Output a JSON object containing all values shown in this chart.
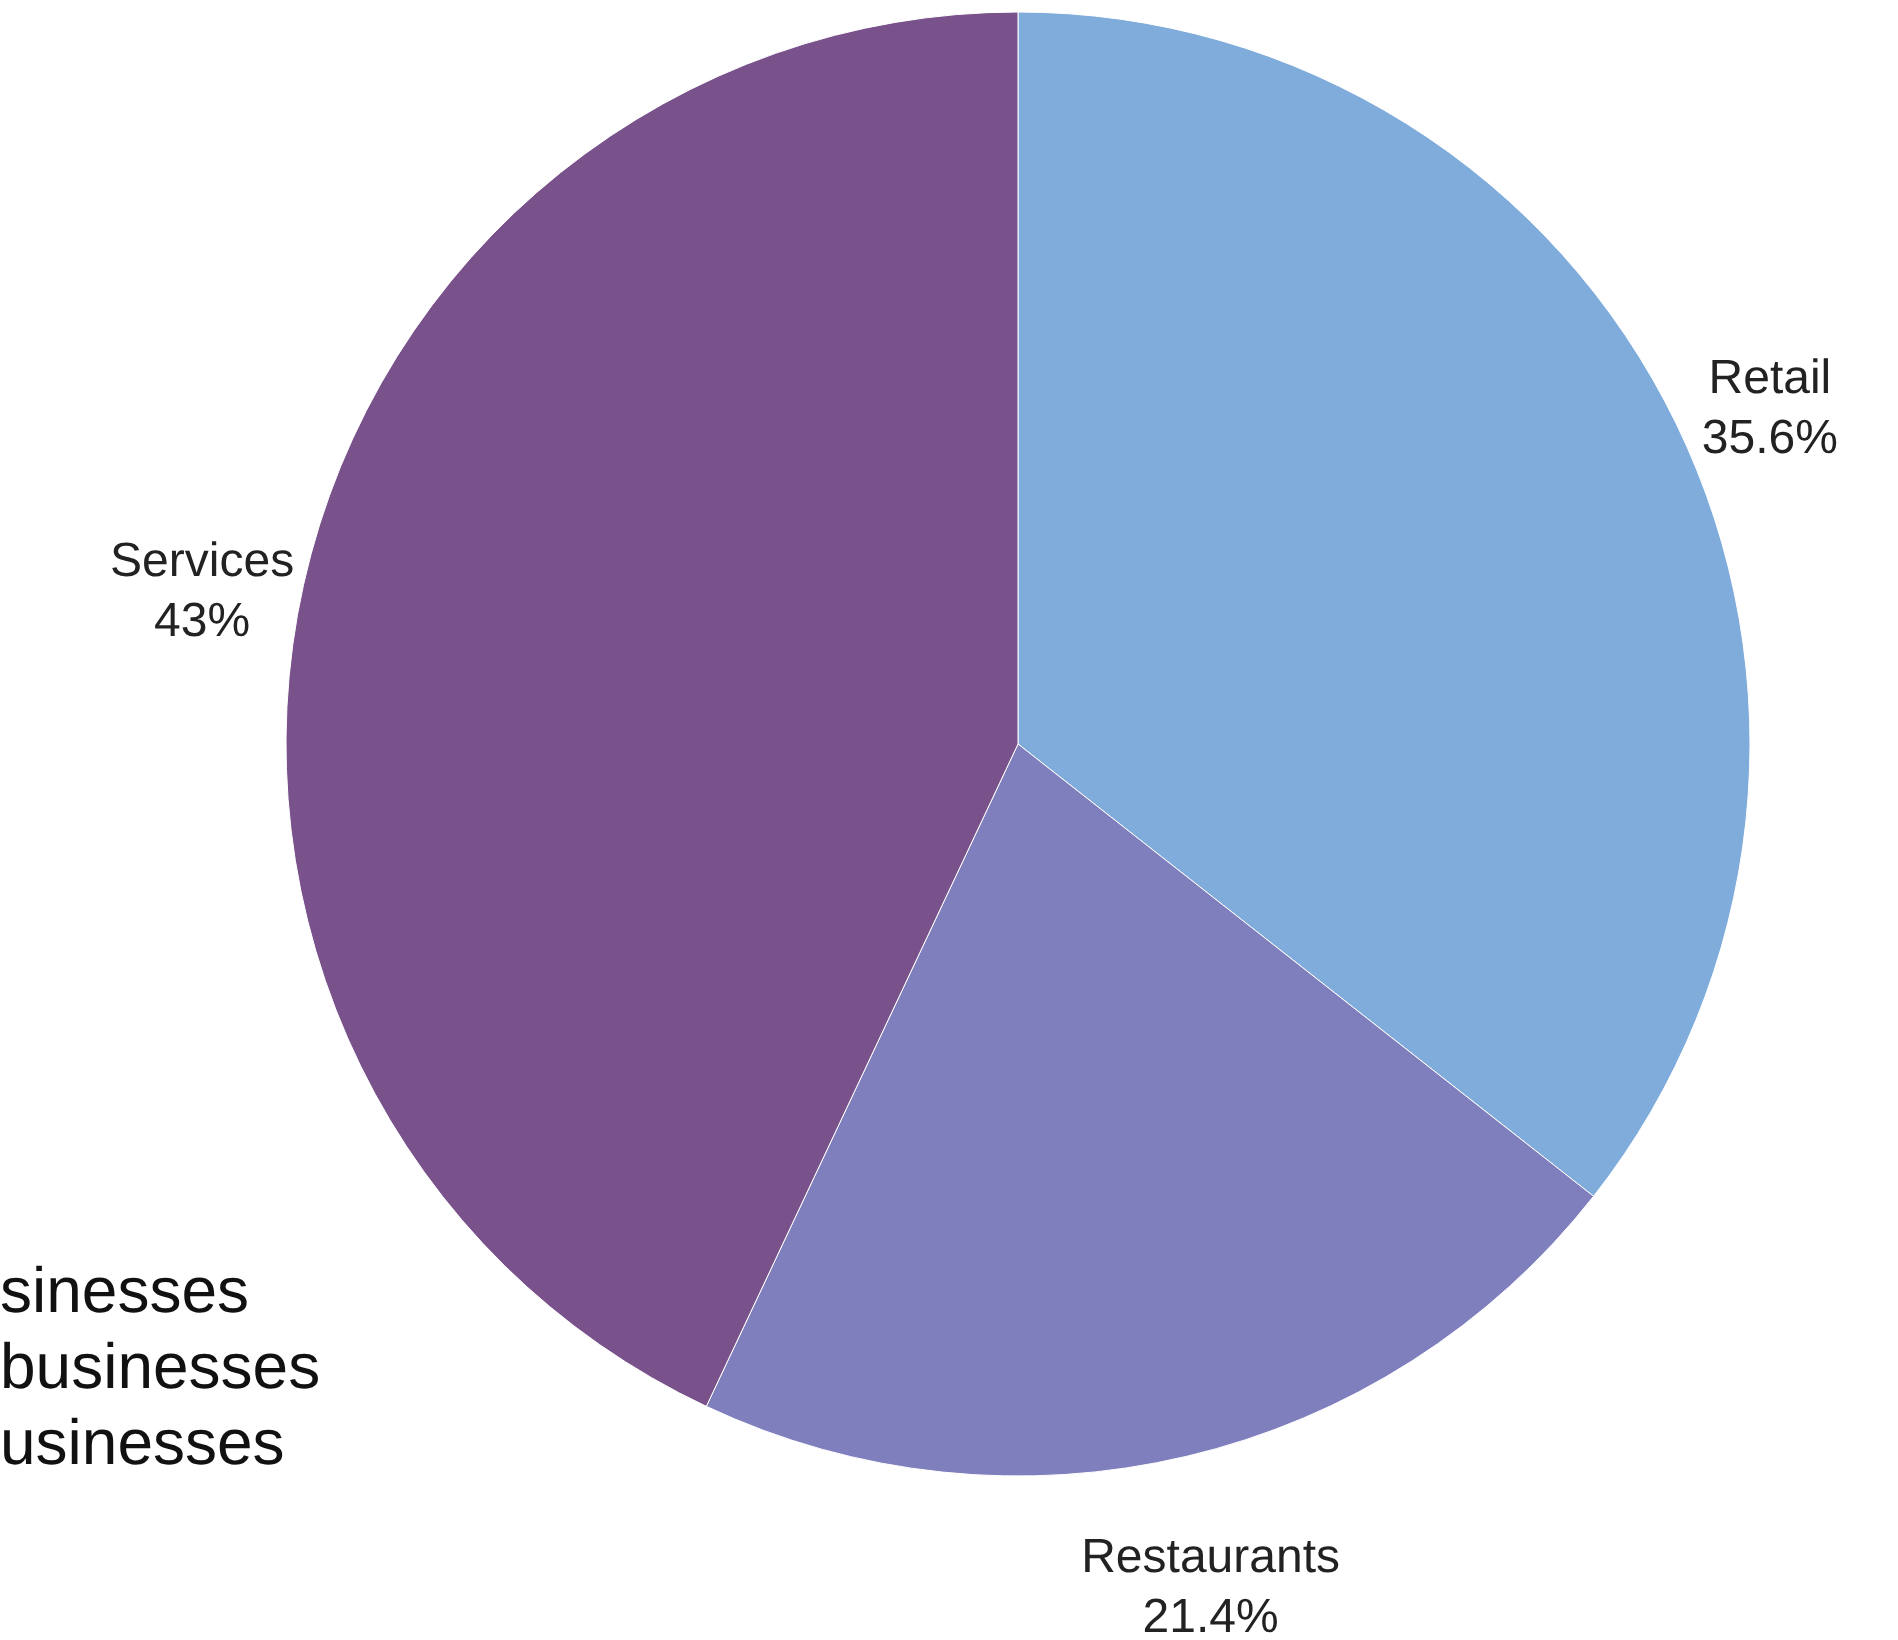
{
  "chart_data": {
    "type": "pie",
    "categories": [
      "Retail",
      "Restaurants",
      "Services"
    ],
    "values": [
      35.6,
      21.4,
      43
    ],
    "colors": [
      "#7facdb",
      "#7f7fbe",
      "#79528c"
    ],
    "value_labels": [
      "35.6%",
      "21.4%",
      "43%"
    ],
    "annotations": [
      "sinesses",
      "businesses",
      "usinesses"
    ]
  }
}
